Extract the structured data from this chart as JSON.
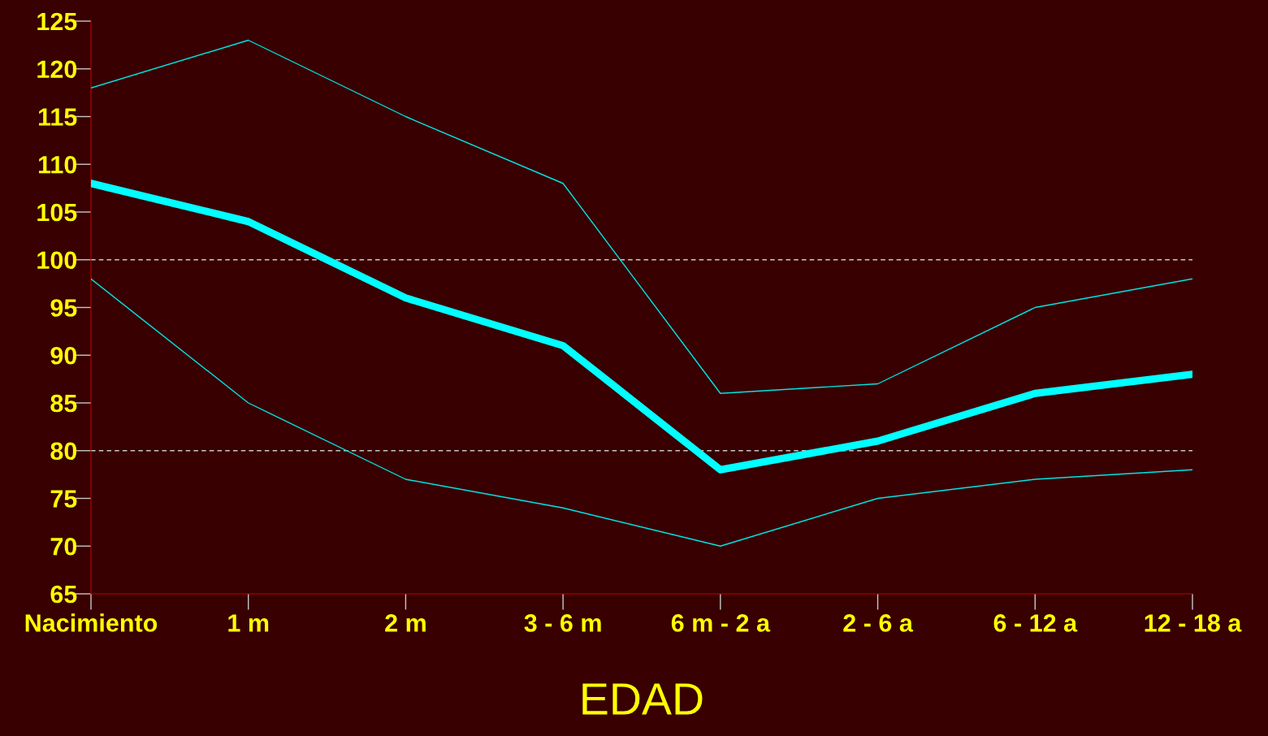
{
  "chart_data": {
    "type": "line",
    "xlabel": "EDAD",
    "categories": [
      "Nacimiento",
      "1 m",
      "2 m",
      "3 - 6 m",
      "6 m - 2 a",
      "2 - 6 a",
      "6 - 12 a",
      "12 - 18 a"
    ],
    "series": [
      {
        "color": "#00e5e5",
        "values": [
          118,
          123,
          115,
          108,
          86,
          87,
          95,
          98
        ]
      },
      {
        "color": "#00ffff",
        "values": [
          108,
          104,
          96,
          91,
          78,
          81,
          86,
          88
        ]
      },
      {
        "color": "#00e5e5",
        "values": [
          98,
          85,
          77,
          74,
          70,
          75,
          77,
          78
        ]
      }
    ],
    "ylim": [
      65,
      125
    ],
    "yticks": [
      65,
      70,
      75,
      80,
      85,
      90,
      95,
      100,
      105,
      110,
      115,
      120,
      125
    ],
    "ref_lines": [
      {
        "axis": "y",
        "value": 100,
        "color": "#c8c8c8",
        "line_style": "dashed"
      },
      {
        "axis": "y",
        "value": 80,
        "color": "#c8c8c8",
        "line_style": "dashed"
      }
    ],
    "grid": false,
    "legend": false,
    "marker": "none",
    "line_style": "solid"
  }
}
